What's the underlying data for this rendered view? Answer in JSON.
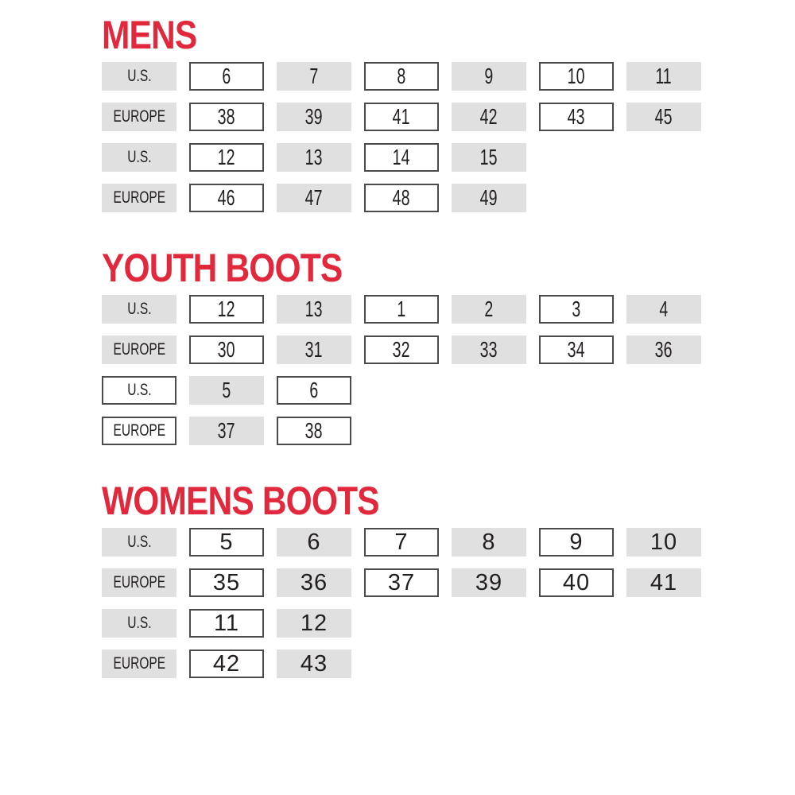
{
  "colors": {
    "title_red": "#e2283c",
    "cell_gray": "#e0e0e0",
    "box_border": "#4a4b4d",
    "text": "#231f20"
  },
  "sections": [
    {
      "title": "MENS",
      "number_style": "condensed",
      "tables": [
        {
          "rows": [
            {
              "label": {
                "text": "U.S.",
                "style": "gray"
              },
              "cells": [
                {
                  "text": "6",
                  "style": "boxed"
                },
                {
                  "text": "7",
                  "style": "gray"
                },
                {
                  "text": "8",
                  "style": "boxed"
                },
                {
                  "text": "9",
                  "style": "gray"
                },
                {
                  "text": "10",
                  "style": "boxed"
                },
                {
                  "text": "11",
                  "style": "gray"
                }
              ]
            },
            {
              "label": {
                "text": "EUROPE",
                "style": "gray"
              },
              "cells": [
                {
                  "text": "38",
                  "style": "boxed"
                },
                {
                  "text": "39",
                  "style": "gray"
                },
                {
                  "text": "41",
                  "style": "boxed"
                },
                {
                  "text": "42",
                  "style": "gray"
                },
                {
                  "text": "43",
                  "style": "boxed"
                },
                {
                  "text": "45",
                  "style": "gray"
                }
              ]
            }
          ]
        },
        {
          "rows": [
            {
              "label": {
                "text": "U.S.",
                "style": "gray"
              },
              "cells": [
                {
                  "text": "12",
                  "style": "boxed"
                },
                {
                  "text": "13",
                  "style": "gray"
                },
                {
                  "text": "14",
                  "style": "boxed"
                },
                {
                  "text": "15",
                  "style": "gray"
                }
              ]
            },
            {
              "label": {
                "text": "EUROPE",
                "style": "gray"
              },
              "cells": [
                {
                  "text": "46",
                  "style": "boxed"
                },
                {
                  "text": "47",
                  "style": "gray"
                },
                {
                  "text": "48",
                  "style": "boxed"
                },
                {
                  "text": "49",
                  "style": "gray"
                }
              ]
            }
          ]
        }
      ]
    },
    {
      "title": "YOUTH BOOTS",
      "number_style": "condensed",
      "tables": [
        {
          "rows": [
            {
              "label": {
                "text": "U.S.",
                "style": "gray"
              },
              "cells": [
                {
                  "text": "12",
                  "style": "boxed"
                },
                {
                  "text": "13",
                  "style": "gray"
                },
                {
                  "text": "1",
                  "style": "boxed"
                },
                {
                  "text": "2",
                  "style": "gray"
                },
                {
                  "text": "3",
                  "style": "boxed"
                },
                {
                  "text": "4",
                  "style": "gray"
                }
              ]
            },
            {
              "label": {
                "text": "EUROPE",
                "style": "gray"
              },
              "cells": [
                {
                  "text": "30",
                  "style": "boxed"
                },
                {
                  "text": "31",
                  "style": "gray"
                },
                {
                  "text": "32",
                  "style": "boxed"
                },
                {
                  "text": "33",
                  "style": "gray"
                },
                {
                  "text": "34",
                  "style": "boxed"
                },
                {
                  "text": "36",
                  "style": "gray"
                }
              ]
            }
          ]
        },
        {
          "rows": [
            {
              "label": {
                "text": "U.S.",
                "style": "boxed"
              },
              "cells": [
                {
                  "text": "5",
                  "style": "gray"
                },
                {
                  "text": "6",
                  "style": "boxed"
                }
              ]
            },
            {
              "label": {
                "text": "EUROPE",
                "style": "boxed"
              },
              "cells": [
                {
                  "text": "37",
                  "style": "gray"
                },
                {
                  "text": "38",
                  "style": "boxed"
                }
              ]
            }
          ]
        }
      ]
    },
    {
      "title": "WOMENS BOOTS",
      "number_style": "regular",
      "tables": [
        {
          "rows": [
            {
              "label": {
                "text": "U.S.",
                "style": "gray"
              },
              "cells": [
                {
                  "text": "5",
                  "style": "boxed"
                },
                {
                  "text": "6",
                  "style": "gray"
                },
                {
                  "text": "7",
                  "style": "boxed"
                },
                {
                  "text": "8",
                  "style": "gray"
                },
                {
                  "text": "9",
                  "style": "boxed"
                },
                {
                  "text": "10",
                  "style": "gray"
                }
              ]
            },
            {
              "label": {
                "text": "EUROPE",
                "style": "gray"
              },
              "cells": [
                {
                  "text": "35",
                  "style": "boxed"
                },
                {
                  "text": "36",
                  "style": "gray"
                },
                {
                  "text": "37",
                  "style": "boxed"
                },
                {
                  "text": "39",
                  "style": "gray"
                },
                {
                  "text": "40",
                  "style": "boxed"
                },
                {
                  "text": "41",
                  "style": "gray"
                }
              ]
            }
          ]
        },
        {
          "rows": [
            {
              "label": {
                "text": "U.S.",
                "style": "gray"
              },
              "cells": [
                {
                  "text": "11",
                  "style": "boxed"
                },
                {
                  "text": "12",
                  "style": "gray"
                }
              ]
            },
            {
              "label": {
                "text": "EUROPE",
                "style": "gray"
              },
              "cells": [
                {
                  "text": "42",
                  "style": "boxed"
                },
                {
                  "text": "43",
                  "style": "gray"
                }
              ]
            }
          ]
        }
      ]
    }
  ]
}
